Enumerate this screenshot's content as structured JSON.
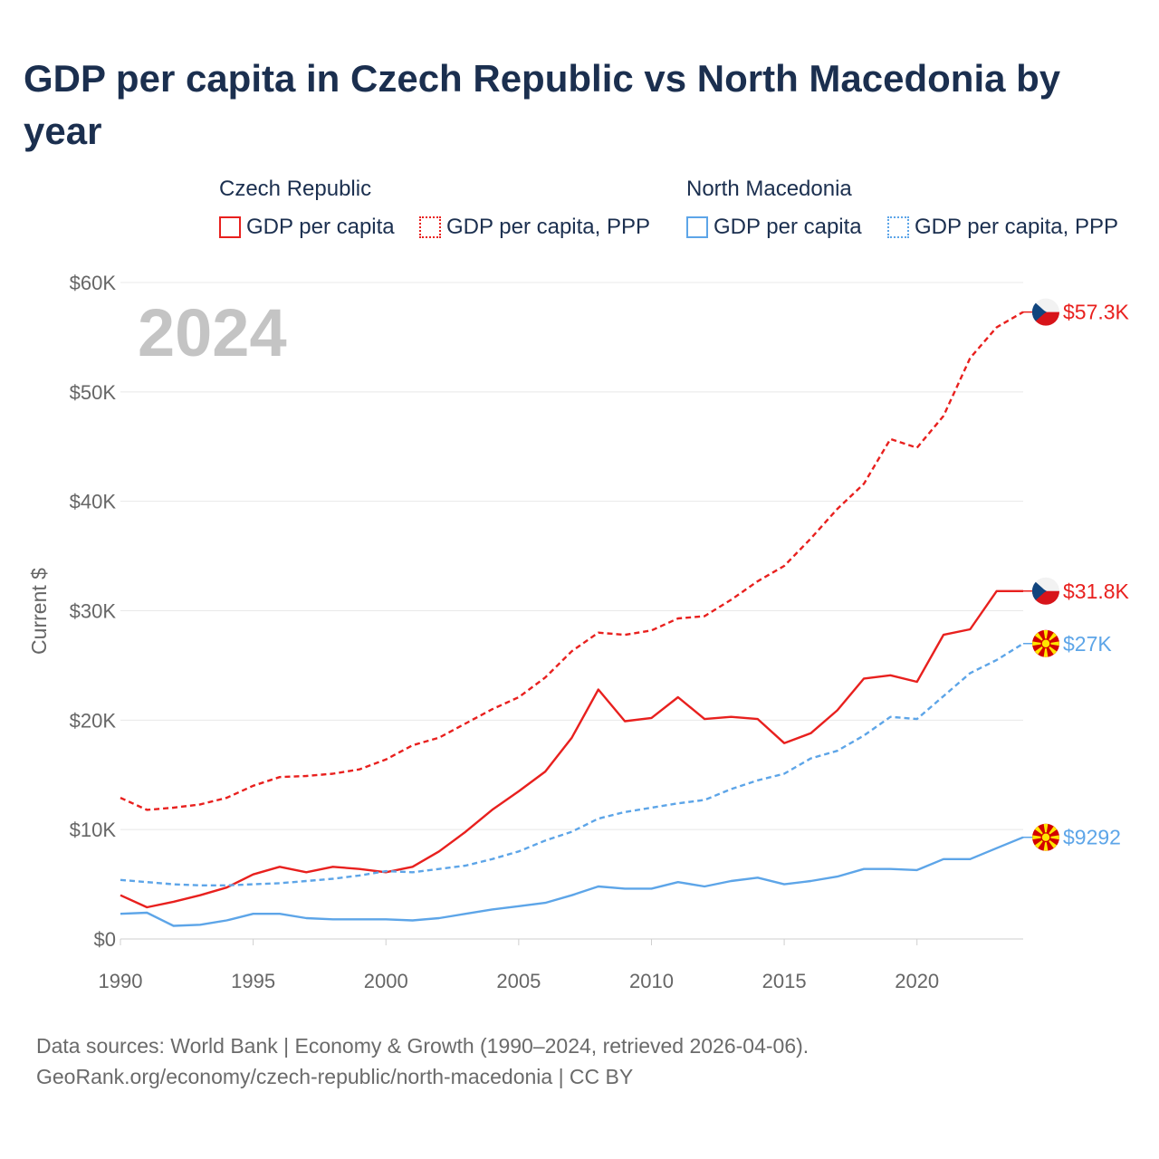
{
  "title": "GDP per capita in Czech Republic vs North Macedonia by year",
  "legend": {
    "groups": [
      {
        "name": "Czech Republic",
        "color": "#e8201e",
        "items": [
          {
            "label": "GDP per capita",
            "style": "solid"
          },
          {
            "label": "GDP per capita, PPP",
            "style": "dotted"
          }
        ]
      },
      {
        "name": "North Macedonia",
        "color": "#5da5e8",
        "items": [
          {
            "label": "GDP per capita",
            "style": "solid"
          },
          {
            "label": "GDP per capita, PPP",
            "style": "dotted"
          }
        ]
      }
    ]
  },
  "year_watermark": "2024",
  "footer": {
    "line1": "Data sources: World Bank | Economy & Growth (1990–2024, retrieved 2026-04-06).",
    "line2": "GeoRank.org/economy/czech-republic/north-macedonia | CC BY"
  },
  "chart_data": {
    "type": "line",
    "title": "GDP per capita in Czech Republic vs North Macedonia by year",
    "xlabel": "",
    "ylabel": "Current $",
    "xlim": [
      1990,
      2024
    ],
    "ylim": [
      0,
      60000
    ],
    "grid": true,
    "x_ticks": [
      1990,
      1995,
      2000,
      2005,
      2010,
      2015,
      2020
    ],
    "x_tick_labels": [
      "1990",
      "1995",
      "2000",
      "2005",
      "2010",
      "2015",
      "2020"
    ],
    "y_ticks": [
      0,
      10000,
      20000,
      30000,
      40000,
      50000,
      60000
    ],
    "y_tick_labels": [
      "$0",
      "$10K",
      "$20K",
      "$30K",
      "$40K",
      "$50K",
      "$60K"
    ],
    "x": [
      1990,
      1991,
      1992,
      1993,
      1994,
      1995,
      1996,
      1997,
      1998,
      1999,
      2000,
      2001,
      2002,
      2003,
      2004,
      2005,
      2006,
      2007,
      2008,
      2009,
      2010,
      2011,
      2012,
      2013,
      2014,
      2015,
      2016,
      2017,
      2018,
      2019,
      2020,
      2021,
      2022,
      2023,
      2024
    ],
    "series": [
      {
        "name": "Czech Republic — GDP per capita, PPP",
        "country": "Czech Republic",
        "color": "#e8201e",
        "dash": true,
        "end_label": "$57.3K",
        "values": [
          12900,
          11800,
          12000,
          12300,
          12900,
          14000,
          14800,
          14900,
          15100,
          15500,
          16400,
          17700,
          18400,
          19700,
          21000,
          22100,
          23900,
          26300,
          28000,
          27800,
          28200,
          29300,
          29500,
          31000,
          32700,
          34100,
          36600,
          39300,
          41600,
          45700,
          44900,
          47800,
          53100,
          55900,
          57300
        ]
      },
      {
        "name": "Czech Republic — GDP per capita",
        "country": "Czech Republic",
        "color": "#e8201e",
        "dash": false,
        "end_label": "$31.8K",
        "values": [
          4000,
          2900,
          3400,
          4000,
          4700,
          5900,
          6600,
          6100,
          6600,
          6400,
          6100,
          6600,
          8000,
          9800,
          11800,
          13500,
          15300,
          18400,
          22800,
          19900,
          20200,
          22100,
          20100,
          20300,
          20100,
          17900,
          18800,
          20900,
          23800,
          24100,
          23500,
          27800,
          28300,
          31800,
          31800
        ]
      },
      {
        "name": "North Macedonia — GDP per capita, PPP",
        "country": "North Macedonia",
        "color": "#5da5e8",
        "dash": true,
        "end_label": "$27K",
        "values": [
          5400,
          5200,
          5000,
          4900,
          4900,
          5000,
          5100,
          5300,
          5500,
          5800,
          6200,
          6100,
          6400,
          6700,
          7300,
          8000,
          9000,
          9800,
          11000,
          11600,
          12000,
          12400,
          12700,
          13700,
          14500,
          15100,
          16500,
          17200,
          18600,
          20300,
          20100,
          22200,
          24300,
          25500,
          27000
        ]
      },
      {
        "name": "North Macedonia — GDP per capita",
        "country": "North Macedonia",
        "color": "#5da5e8",
        "dash": false,
        "end_label": "$9292",
        "values": [
          2300,
          2400,
          1200,
          1300,
          1700,
          2300,
          2300,
          1900,
          1800,
          1800,
          1800,
          1700,
          1900,
          2300,
          2700,
          3000,
          3300,
          4000,
          4800,
          4600,
          4600,
          5200,
          4800,
          5300,
          5600,
          5000,
          5300,
          5700,
          6400,
          6400,
          6300,
          7300,
          7300,
          8300,
          9292
        ]
      }
    ]
  }
}
